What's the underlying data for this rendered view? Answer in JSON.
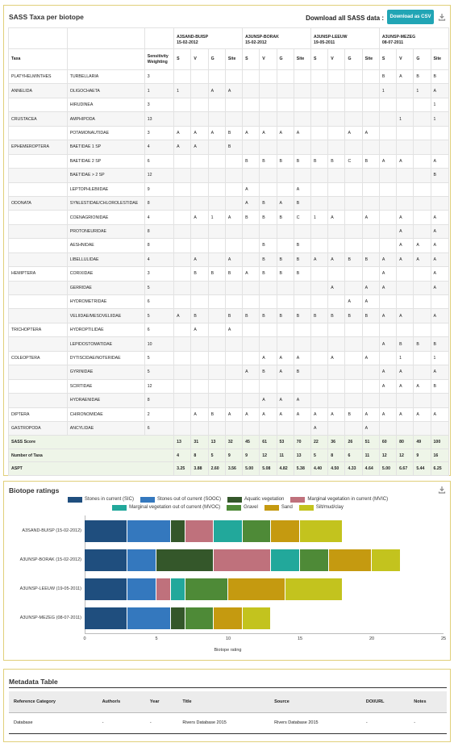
{
  "sass_panel": {
    "title": "SASS Taxa per biotope",
    "download_label": "Download all SASS data :",
    "download_button": "Download as CSV",
    "sites": [
      {
        "name": "A3SAND-BUISP",
        "date": "15-02-2012"
      },
      {
        "name": "A3UNSP-BORAK",
        "date": "15-02-2012"
      },
      {
        "name": "A3UNSP-LEEUW",
        "date": "19-05-2011"
      },
      {
        "name": "A3UNSP-MEZEG",
        "date": "08-07-2011"
      }
    ],
    "col_taxa": "Taxa",
    "col_weight": "Sensitivity Weighting",
    "sub_cols": [
      "S",
      "V",
      "G",
      "Site"
    ],
    "rows": [
      [
        "PLATYHELMINTHES",
        "TURBELLARIA",
        "3",
        "",
        "",
        "",
        "",
        "",
        "",
        "",
        "",
        "",
        "",
        "",
        "",
        "B",
        "A",
        "B",
        "B"
      ],
      [
        "ANNELIDA",
        "OLIGOCHAETA",
        "1",
        "1",
        "",
        "A",
        "A",
        "",
        "",
        "",
        "",
        "",
        "",
        "",
        "",
        "1",
        "",
        "1",
        "A"
      ],
      [
        "",
        "HIRUDINEA",
        "3",
        "",
        "",
        "",
        "",
        "",
        "",
        "",
        "",
        "",
        "",
        "",
        "",
        "",
        "",
        "",
        "1"
      ],
      [
        "CRUSTACEA",
        "AMPHIPODA",
        "13",
        "",
        "",
        "",
        "",
        "",
        "",
        "",
        "",
        "",
        "",
        "",
        "",
        "",
        "1",
        "",
        "1"
      ],
      [
        "",
        "POTAMONAUTIDAE",
        "3",
        "A",
        "A",
        "A",
        "B",
        "A",
        "A",
        "A",
        "A",
        "",
        "",
        "A",
        "A",
        "",
        "",
        "",
        ""
      ],
      [
        "EPHEMEROPTERA",
        "BAETIDAE 1 SP",
        "4",
        "A",
        "A",
        "",
        "B",
        "",
        "",
        "",
        "",
        "",
        "",
        "",
        "",
        "",
        "",
        "",
        ""
      ],
      [
        "",
        "BAETIDAE 2 SP",
        "6",
        "",
        "",
        "",
        "",
        "B",
        "B",
        "B",
        "B",
        "B",
        "B",
        "C",
        "B",
        "A",
        "A",
        "",
        "A"
      ],
      [
        "",
        "BAETIDAE > 2 SP",
        "12",
        "",
        "",
        "",
        "",
        "",
        "",
        "",
        "",
        "",
        "",
        "",
        "",
        "",
        "",
        "",
        "B"
      ],
      [
        "",
        "LEPTOPHLEBIIDAE",
        "9",
        "",
        "",
        "",
        "",
        "A",
        "",
        "",
        "A",
        "",
        "",
        "",
        "",
        "",
        "",
        "",
        ""
      ],
      [
        "ODONATA",
        "SYNLESTIDAE/CHLOROLESTIDAE",
        "8",
        "",
        "",
        "",
        "",
        "A",
        "B",
        "A",
        "B",
        "",
        "",
        "",
        "",
        "",
        "",
        "",
        ""
      ],
      [
        "",
        "COENAGRIONIDAE",
        "4",
        "",
        "A",
        "1",
        "A",
        "B",
        "B",
        "B",
        "C",
        "1",
        "A",
        "",
        "A",
        "",
        "A",
        "",
        "A"
      ],
      [
        "",
        "PROTONEURIDAE",
        "8",
        "",
        "",
        "",
        "",
        "",
        "",
        "",
        "",
        "",
        "",
        "",
        "",
        "",
        "A",
        "",
        "A"
      ],
      [
        "",
        "AESHNIDAE",
        "8",
        "",
        "",
        "",
        "",
        "",
        "B",
        "",
        "B",
        "",
        "",
        "",
        "",
        "",
        "A",
        "A",
        "A"
      ],
      [
        "",
        "LIBELLULIDAE",
        "4",
        "",
        "A",
        "",
        "A",
        "",
        "B",
        "B",
        "B",
        "A",
        "A",
        "B",
        "B",
        "A",
        "A",
        "A",
        "A"
      ],
      [
        "HEMIPTERA",
        "CORIXIDAE",
        "3",
        "",
        "B",
        "B",
        "B",
        "A",
        "B",
        "B",
        "B",
        "",
        "",
        "",
        "",
        "A",
        "",
        "",
        "A"
      ],
      [
        "",
        "GERRIDAE",
        "5",
        "",
        "",
        "",
        "",
        "",
        "",
        "",
        "",
        "",
        "A",
        "",
        "A",
        "A",
        "",
        "",
        "A"
      ],
      [
        "",
        "HYDROMETRIDAE",
        "6",
        "",
        "",
        "",
        "",
        "",
        "",
        "",
        "",
        "",
        "",
        "A",
        "A",
        "",
        "",
        "",
        ""
      ],
      [
        "",
        "VELIIDAE/MESOVELIIDAE",
        "5",
        "A",
        "B",
        "",
        "B",
        "B",
        "B",
        "B",
        "B",
        "B",
        "B",
        "B",
        "B",
        "A",
        "A",
        "",
        "A"
      ],
      [
        "TRICHOPTERA",
        "HYDROPTILIDAE",
        "6",
        "",
        "A",
        "",
        "A",
        "",
        "",
        "",
        "",
        "",
        "",
        "",
        "",
        "",
        "",
        "",
        ""
      ],
      [
        "",
        "LEPIDOSTOMATIDAE",
        "10",
        "",
        "",
        "",
        "",
        "",
        "",
        "",
        "",
        "",
        "",
        "",
        "",
        "A",
        "B",
        "B",
        "B"
      ],
      [
        "COLEOPTERA",
        "DYTISCIDAE/NOTERIDAE",
        "5",
        "",
        "",
        "",
        "",
        "",
        "A",
        "A",
        "A",
        "",
        "A",
        "",
        "A",
        "",
        "1",
        "",
        "1"
      ],
      [
        "",
        "GYRINIDAE",
        "5",
        "",
        "",
        "",
        "",
        "A",
        "B",
        "A",
        "B",
        "",
        "",
        "",
        "",
        "A",
        "A",
        "",
        "A"
      ],
      [
        "",
        "SCIRTIDAE",
        "12",
        "",
        "",
        "",
        "",
        "",
        "",
        "",
        "",
        "",
        "",
        "",
        "",
        "A",
        "A",
        "A",
        "B"
      ],
      [
        "",
        "HYDRAENIDAE",
        "8",
        "",
        "",
        "",
        "",
        "",
        "A",
        "A",
        "A",
        "",
        "",
        "",
        "",
        "",
        "",
        "",
        ""
      ],
      [
        "DIPTERA",
        "CHIRONOMIDAE",
        "2",
        "",
        "A",
        "B",
        "A",
        "A",
        "A",
        "A",
        "A",
        "A",
        "A",
        "B",
        "A",
        "A",
        "A",
        "A",
        "A"
      ],
      [
        "GASTROPODA",
        "ANCYLIDAE",
        "6",
        "",
        "",
        "",
        "",
        "",
        "",
        "",
        "",
        "A",
        "",
        "",
        "A",
        "",
        "",
        "",
        ""
      ]
    ],
    "summary": [
      {
        "label": "SASS Score",
        "values": [
          "13",
          "31",
          "13",
          "32",
          "45",
          "61",
          "53",
          "70",
          "22",
          "36",
          "26",
          "51",
          "60",
          "80",
          "49",
          "100"
        ]
      },
      {
        "label": "Number of Taxa",
        "values": [
          "4",
          "8",
          "5",
          "9",
          "9",
          "12",
          "11",
          "13",
          "5",
          "8",
          "6",
          "11",
          "12",
          "12",
          "9",
          "16"
        ]
      },
      {
        "label": "ASPT",
        "values": [
          "3.25",
          "3.88",
          "2.60",
          "3.56",
          "5.00",
          "5.08",
          "4.82",
          "5.38",
          "4.40",
          "4.50",
          "4.33",
          "4.64",
          "5.00",
          "6.67",
          "5.44",
          "6.25"
        ]
      }
    ]
  },
  "biotope_panel": {
    "title": "Biotope ratings",
    "legend": [
      {
        "name": "Stones in current (SIC)",
        "color": "#1f4e7e"
      },
      {
        "name": "Stones out of current (SOOC)",
        "color": "#3478be"
      },
      {
        "name": "Aquatic vegetation",
        "color": "#34572a"
      },
      {
        "name": "Marginal vegetation in current (MVIC)",
        "color": "#bf717c"
      },
      {
        "name": "Marginal vegetation out of current (MVOC)",
        "color": "#22a89b"
      },
      {
        "name": "Gravel",
        "color": "#4e8a37"
      },
      {
        "name": "Sand",
        "color": "#c59a10"
      },
      {
        "name": "Silt/mud/clay",
        "color": "#c3c31e"
      }
    ],
    "xlabel": "Biotope rating"
  },
  "chart_data": {
    "type": "bar",
    "orientation": "horizontal",
    "stacked": true,
    "categories": [
      "A3SAND-BUISP (15-02-2012)",
      "A3UNSP-BORAK (15-02-2012)",
      "A3UNSP-LEEUW (19-05-2011)",
      "A3UNSP-MEZEG (08-07-2011)"
    ],
    "series": [
      {
        "name": "Stones in current (SIC)",
        "values": [
          3,
          3,
          3,
          3
        ]
      },
      {
        "name": "Stones out of current (SOOC)",
        "values": [
          3,
          2,
          2,
          3
        ]
      },
      {
        "name": "Aquatic vegetation",
        "values": [
          1,
          4,
          0,
          1
        ]
      },
      {
        "name": "Marginal vegetation in current (MVIC)",
        "values": [
          2,
          4,
          1,
          0
        ]
      },
      {
        "name": "Marginal vegetation out of current (MVOC)",
        "values": [
          2,
          2,
          1,
          0
        ]
      },
      {
        "name": "Gravel",
        "values": [
          2,
          2,
          3,
          2
        ]
      },
      {
        "name": "Sand",
        "values": [
          2,
          3,
          4,
          2
        ]
      },
      {
        "name": "Silt/mud/clay",
        "values": [
          3,
          2,
          4,
          2
        ]
      }
    ],
    "xlim": [
      0,
      25
    ],
    "xticks": [
      "0",
      "5",
      "10",
      "15",
      "20",
      "25"
    ],
    "xlabel": "Biotope rating",
    "legend_position": "top",
    "grid": false
  },
  "metadata_panel": {
    "title": "Metadata Table",
    "headers": [
      "Reference Category",
      "Author/s",
      "Year",
      "Title",
      "Source",
      "DOI/URL",
      "Notes"
    ],
    "rows": [
      [
        "Database",
        "-",
        "-",
        "Rivers Database 2015",
        "Rivers Database 2015",
        "-",
        "-"
      ]
    ]
  },
  "icons": {
    "download": "download-icon"
  }
}
